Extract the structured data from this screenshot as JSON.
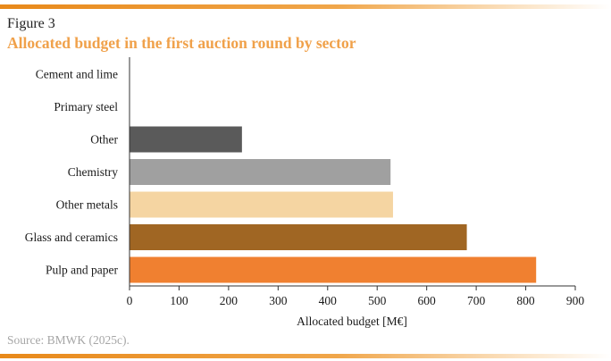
{
  "figure_label": "Figure 3",
  "title": "Allocated budget in the first auction round by sector",
  "source": "Source: BMWK (2025c).",
  "chart_data": {
    "type": "bar",
    "orientation": "horizontal",
    "categories": [
      "Cement and lime",
      "Primary steel",
      "Other",
      "Chemistry",
      "Other metals",
      "Glass and ceramics",
      "Pulp and paper"
    ],
    "values": [
      0,
      0,
      227,
      527,
      532,
      681,
      821
    ],
    "colors": [
      "#f08030",
      "#f08030",
      "#5a5a5a",
      "#a0a0a0",
      "#f5d5a2",
      "#a06623",
      "#f08030"
    ],
    "xlabel": "Allocated budget [M€]",
    "ylabel": "",
    "xlim": [
      0,
      900
    ],
    "xticks": [
      "0",
      "100",
      "200",
      "300",
      "400",
      "500",
      "600",
      "700",
      "800",
      "900"
    ],
    "grid": false,
    "legend": false
  }
}
